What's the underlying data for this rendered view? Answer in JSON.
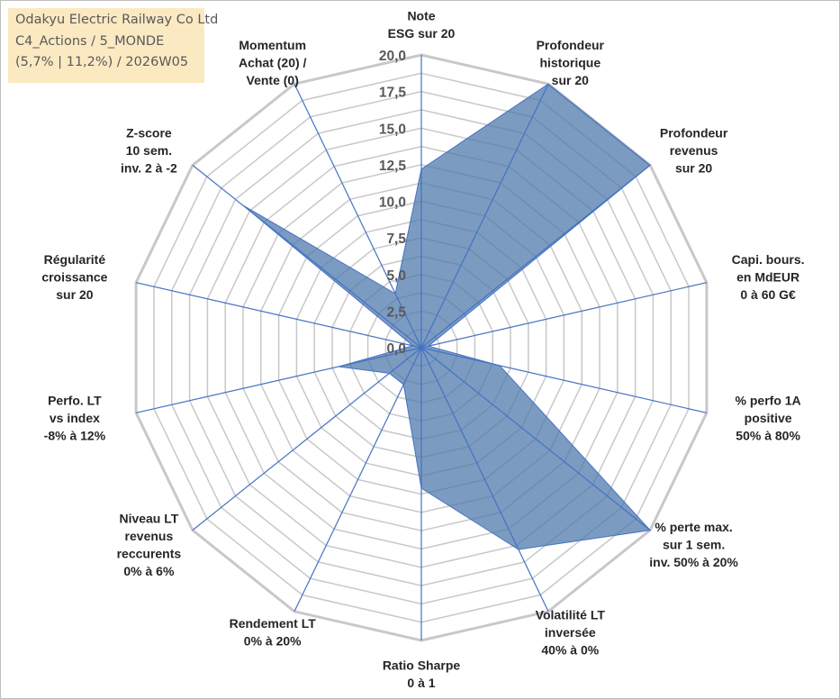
{
  "info": {
    "line1": "Odakyu Electric Railway Co Ltd",
    "line2": "C4_Actions / 5_MONDE",
    "line3": "(5,7% | 11,2%) / 2026W05"
  },
  "chart_data": {
    "type": "radar",
    "range": [
      0,
      20
    ],
    "tick_values": [
      0,
      2.5,
      5,
      7.5,
      10,
      12.5,
      15,
      17.5,
      20
    ],
    "tick_labels": [
      "0,0",
      "2,5",
      "5,0",
      "7,5",
      "10,0",
      "12,5",
      "15,0",
      "17,5",
      "20,0"
    ],
    "axes": [
      {
        "lines": [
          "Note",
          "ESG sur 20"
        ]
      },
      {
        "lines": [
          "Profondeur",
          "historique",
          "sur 20"
        ]
      },
      {
        "lines": [
          "Profondeur",
          "revenus",
          "sur 20"
        ]
      },
      {
        "lines": [
          "Capi. bours.",
          "en MdEUR",
          "0 à 60 G€"
        ]
      },
      {
        "lines": [
          "% perfo 1A",
          "positive",
          "50% à 80%"
        ]
      },
      {
        "lines": [
          "% perte max.",
          "sur 1 sem.",
          "inv. 50% à 20%"
        ]
      },
      {
        "lines": [
          "Volatilité LT",
          "inversée",
          "40% à 0%"
        ]
      },
      {
        "lines": [
          "Ratio Sharpe",
          "0 à 1"
        ]
      },
      {
        "lines": [
          "Rendement LT",
          "0% à 20%"
        ]
      },
      {
        "lines": [
          "Niveau LT",
          "revenus",
          "reccurents",
          "0% à 6%"
        ]
      },
      {
        "lines": [
          "Perfo. LT",
          "vs index",
          "-8% à 12%"
        ]
      },
      {
        "lines": [
          "Régularité",
          "croissance",
          "sur 20"
        ]
      },
      {
        "lines": [
          "Z-score",
          "10 sem.",
          "inv. 2 à -2"
        ]
      },
      {
        "lines": [
          "Momentum",
          "Achat (20) /",
          "Vente (0)"
        ]
      }
    ],
    "values": [
      12.2,
      20,
      20,
      0.5,
      5.5,
      20,
      15.3,
      9.6,
      2.8,
      2.8,
      5.8,
      0.6,
      15.6,
      4.1
    ],
    "colors": {
      "fill": "#4f7aac",
      "fill_opacity": 0.75,
      "series_line": "#4472c4",
      "grid": "#c8c8c8",
      "spoke": "#4472c4"
    }
  }
}
